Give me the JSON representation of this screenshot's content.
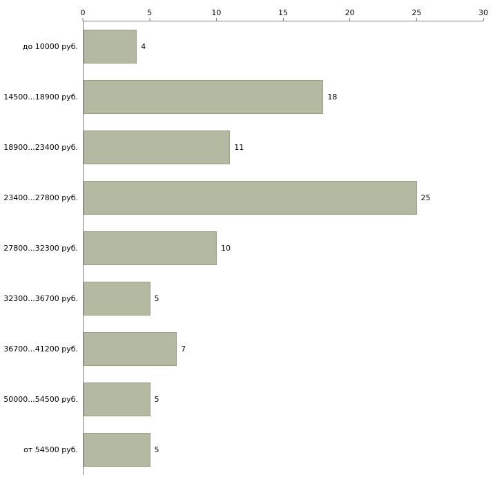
{
  "chart_data": {
    "type": "bar",
    "orientation": "horizontal",
    "categories": [
      "до 10000 руб.",
      "14500...18900 руб.",
      "18900...23400 руб.",
      "23400...27800 руб.",
      "27800...32300 руб.",
      "32300...36700 руб.",
      "36700...41200 руб.",
      "50000...54500 руб.",
      "от 54500 руб."
    ],
    "values": [
      4,
      18,
      11,
      25,
      10,
      5,
      7,
      5,
      5
    ],
    "value_labels": [
      "4",
      "18",
      "11",
      "25",
      "10",
      "5",
      "7",
      "5",
      "5"
    ],
    "xlim": [
      0,
      30
    ],
    "x_ticks": [
      0,
      5,
      10,
      15,
      20,
      25,
      30
    ],
    "grid": "off",
    "legend": "none",
    "colors": {
      "bar_fill": "#b4baa2",
      "bar_border": "#9aa088",
      "axis": "#7f7f7f",
      "text": "#000000"
    }
  }
}
